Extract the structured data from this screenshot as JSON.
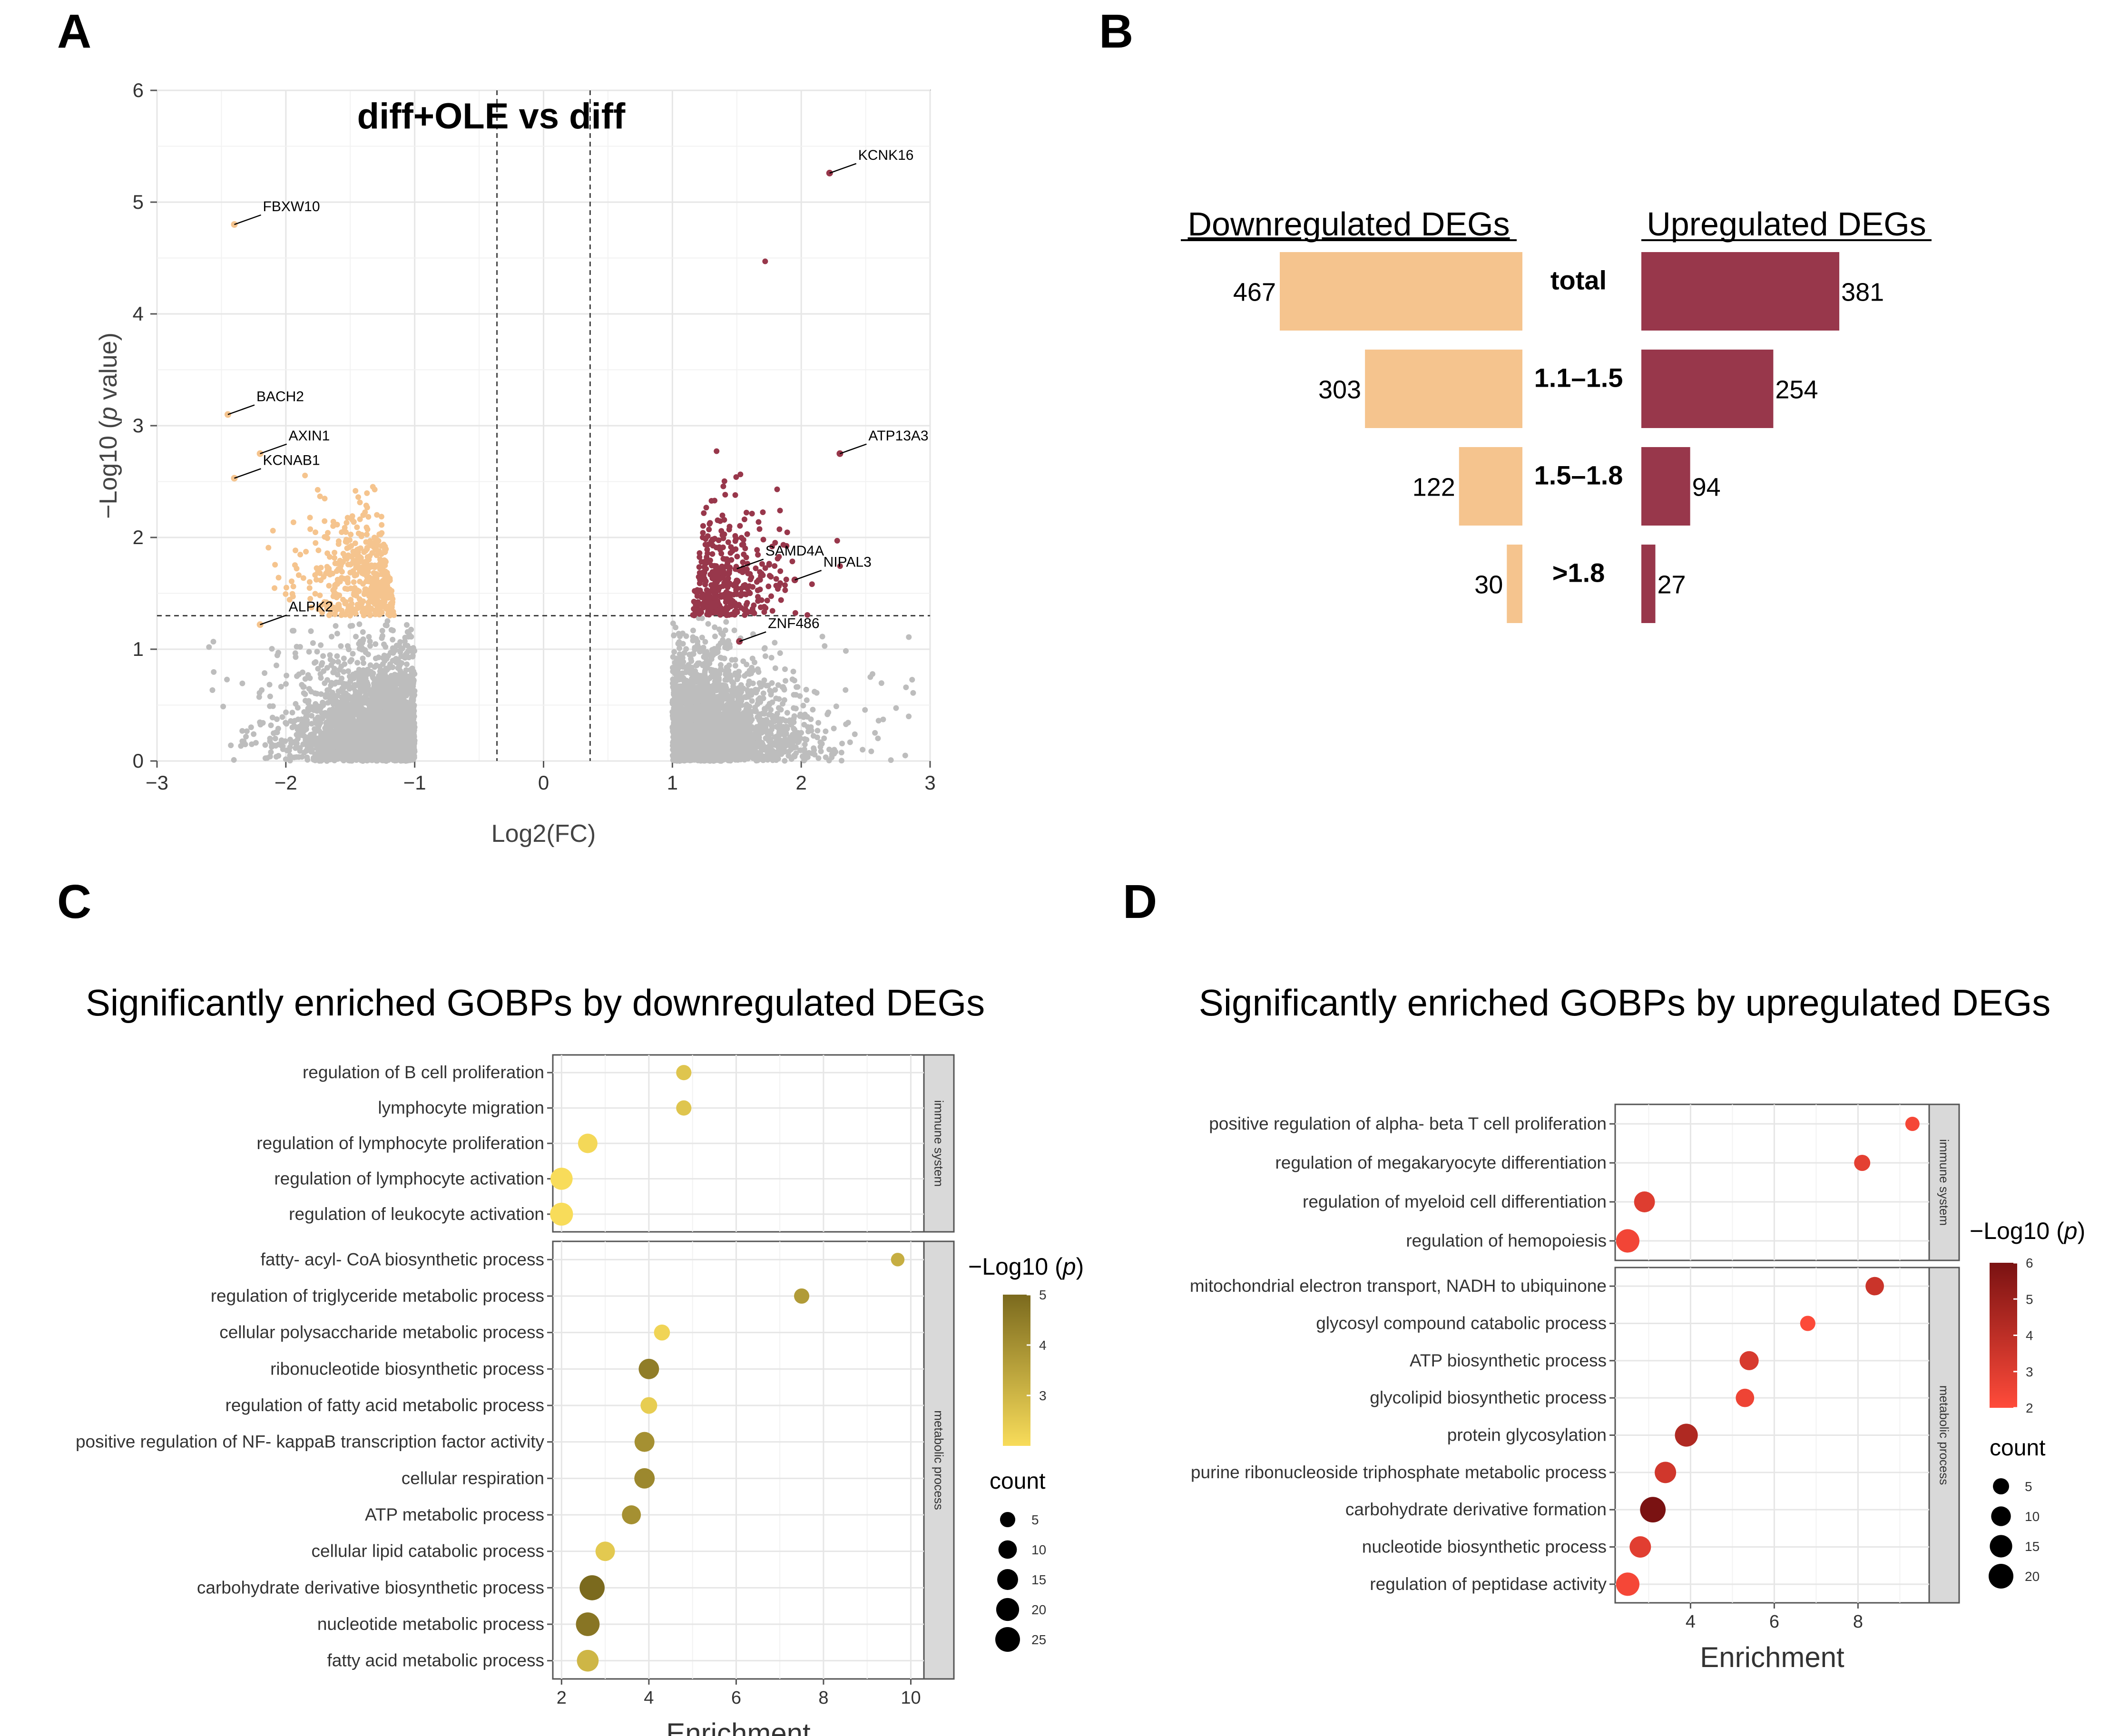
{
  "colors": {
    "down": "#F5C48E",
    "up": "#98374B",
    "ns": "#BDBDBD",
    "grid": "#E6E6E6",
    "strip": "#D9D9D9"
  },
  "panels": {
    "A": {
      "letter": "A",
      "chart_data": {
        "type": "scatter",
        "title": "diff+OLE vs diff",
        "xlabel": "Log2(FC)",
        "ylabel_prefix": "−Log10 (",
        "ylabel_italic": "p",
        "ylabel_suffix": " value)",
        "xlim": [
          -3,
          3
        ],
        "ylim": [
          0,
          6
        ],
        "xticks": [
          -3,
          -2,
          -1,
          0,
          1,
          2,
          3
        ],
        "xtick_labels": [
          "−3",
          "−2",
          "−1",
          "0",
          "1",
          "2",
          "3"
        ],
        "yticks": [
          0,
          1,
          2,
          3,
          4,
          5,
          6
        ],
        "fc_cutoffs": [
          -0.14,
          0.14
        ],
        "p_cutoff": 1.3,
        "labeled_genes": [
          {
            "gene": "KCNK16",
            "x": 2.22,
            "y": 5.26
          },
          {
            "gene": "FBXW10",
            "x": -2.4,
            "y": 4.8
          },
          {
            "gene": "BACH2",
            "x": -2.45,
            "y": 3.1
          },
          {
            "gene": "AXIN1",
            "x": -2.2,
            "y": 2.75
          },
          {
            "gene": "KCNAB1",
            "x": -2.4,
            "y": 2.53
          },
          {
            "gene": "ATP13A3",
            "x": 2.3,
            "y": 2.75
          },
          {
            "gene": "SAMD4A",
            "x": 1.5,
            "y": 1.72
          },
          {
            "gene": "NIPAL3",
            "x": 1.95,
            "y": 1.62
          },
          {
            "gene": "ALPK2",
            "x": -2.2,
            "y": 1.22
          },
          {
            "gene": "ZNF486",
            "x": 1.52,
            "y": 1.07
          }
        ]
      }
    },
    "B": {
      "letter": "B",
      "chart_data": {
        "type": "bar",
        "layout": "butterfly",
        "left_title": "Downregulated DEGs",
        "right_title": "Upregulated DEGs",
        "categories": [
          "total",
          "1.1–1.5",
          "1.5–1.8",
          ">1.8"
        ],
        "series": [
          {
            "name": "Downregulated DEGs",
            "values": [
              467,
              303,
              122,
              30
            ]
          },
          {
            "name": "Upregulated DEGs",
            "values": [
              381,
              254,
              94,
              27
            ]
          }
        ],
        "value_labels_down": [
          "467",
          "303",
          "122",
          "30"
        ],
        "value_labels_up": [
          "381",
          "254",
          "94",
          "27"
        ]
      }
    },
    "C": {
      "letter": "C",
      "chart_data": {
        "type": "scatter",
        "title": "Significantly enriched GOBPs by downregulated DEGs",
        "xlabel": "Enrichment",
        "xlim": [
          1.8,
          10.3
        ],
        "xticks": [
          2,
          4,
          6,
          8,
          10
        ],
        "facets": [
          {
            "name": "immune system",
            "terms": [
              {
                "term": "regulation of B cell proliferation",
                "enrichment": 4.8,
                "log10p": 2.6,
                "count": 5
              },
              {
                "term": "lymphocyte migration",
                "enrichment": 4.8,
                "log10p": 2.6,
                "count": 5
              },
              {
                "term": "regulation of lymphocyte proliferation",
                "enrichment": 2.6,
                "log10p": 2.1,
                "count": 12
              },
              {
                "term": "regulation of lymphocyte activation",
                "enrichment": 2.0,
                "log10p": 2.0,
                "count": 18
              },
              {
                "term": "regulation of leukocyte activation",
                "enrichment": 2.0,
                "log10p": 2.0,
                "count": 20
              }
            ]
          },
          {
            "name": "metabolic process",
            "terms": [
              {
                "term": "fatty- acyl- CoA biosynthetic process",
                "enrichment": 9.7,
                "log10p": 3.2,
                "count": 3
              },
              {
                "term": "regulation of triglyceride metabolic process",
                "enrichment": 7.5,
                "log10p": 3.7,
                "count": 5
              },
              {
                "term": "cellular polysaccharide metabolic process",
                "enrichment": 4.3,
                "log10p": 2.2,
                "count": 6
              },
              {
                "term": "ribonucleotide biosynthetic process",
                "enrichment": 4.0,
                "log10p": 4.5,
                "count": 14
              },
              {
                "term": "regulation of fatty acid metabolic process",
                "enrichment": 4.0,
                "log10p": 2.4,
                "count": 7
              },
              {
                "term": "positive regulation of NF- kappaB transcription factor activity",
                "enrichment": 3.9,
                "log10p": 4.0,
                "count": 13
              },
              {
                "term": "cellular respiration",
                "enrichment": 3.9,
                "log10p": 4.2,
                "count": 14
              },
              {
                "term": "ATP metabolic process",
                "enrichment": 3.6,
                "log10p": 4.0,
                "count": 11
              },
              {
                "term": "cellular lipid catabolic process",
                "enrichment": 3.0,
                "log10p": 2.5,
                "count": 12
              },
              {
                "term": "carbohydrate derivative biosynthetic process",
                "enrichment": 2.7,
                "log10p": 5.0,
                "count": 26
              },
              {
                "term": "nucleotide metabolic process",
                "enrichment": 2.6,
                "log10p": 4.7,
                "count": 22
              },
              {
                "term": "fatty acid metabolic process",
                "enrichment": 2.6,
                "log10p": 3.0,
                "count": 17
              }
            ]
          }
        ],
        "color_legend": {
          "title_prefix": "−Log10 (",
          "title_italic": "p",
          "title_suffix": ")",
          "min": 2,
          "max": 5,
          "ticks": [
            "5",
            "4",
            "3"
          ],
          "tick_values": [
            5,
            4,
            3
          ],
          "low": "#F8DC5A",
          "high": "#7B6A1E"
        },
        "size_legend": {
          "title": "count",
          "values": [
            5,
            10,
            15,
            20,
            25
          ],
          "labels": [
            "5",
            "10",
            "15",
            "20",
            "25"
          ]
        }
      }
    },
    "D": {
      "letter": "D",
      "chart_data": {
        "type": "scatter",
        "title": "Significantly enriched GOBPs by upregulated DEGs",
        "xlabel": "Enrichment",
        "xlim": [
          2.2,
          9.7
        ],
        "xticks": [
          4,
          6,
          8
        ],
        "facets": [
          {
            "name": "immune system",
            "terms": [
              {
                "term": "positive regulation of alpha- beta T cell proliferation",
                "enrichment": 9.3,
                "log10p": 2.3,
                "count": 3
              },
              {
                "term": "regulation of megakaryocyte differentiation",
                "enrichment": 8.1,
                "log10p": 2.8,
                "count": 5
              },
              {
                "term": "regulation of myeloid cell differentiation",
                "enrichment": 2.9,
                "log10p": 3.0,
                "count": 12
              },
              {
                "term": "regulation of hemopoiesis",
                "enrichment": 2.5,
                "log10p": 2.4,
                "count": 17
              }
            ]
          },
          {
            "name": "metabolic process",
            "terms": [
              {
                "term": "mitochondrial electron transport, NADH to ubiquinone",
                "enrichment": 8.4,
                "log10p": 3.6,
                "count": 8
              },
              {
                "term": "glycosyl compound catabolic process",
                "enrichment": 6.8,
                "log10p": 2.1,
                "count": 4
              },
              {
                "term": "ATP biosynthetic process",
                "enrichment": 5.4,
                "log10p": 3.2,
                "count": 9
              },
              {
                "term": "glycolipid biosynthetic process",
                "enrichment": 5.3,
                "log10p": 2.5,
                "count": 8
              },
              {
                "term": "protein glycosylation",
                "enrichment": 3.9,
                "log10p": 4.4,
                "count": 16
              },
              {
                "term": "purine ribonucleoside triphosphate metabolic process",
                "enrichment": 3.4,
                "log10p": 3.4,
                "count": 13
              },
              {
                "term": "carbohydrate derivative formation",
                "enrichment": 3.1,
                "log10p": 6.0,
                "count": 22
              },
              {
                "term": "nucleotide biosynthetic process",
                "enrichment": 2.8,
                "log10p": 2.9,
                "count": 13
              },
              {
                "term": "regulation of peptidase activity",
                "enrichment": 2.5,
                "log10p": 2.3,
                "count": 17
              }
            ]
          }
        ],
        "color_legend": {
          "title_prefix": "−Log10 (",
          "title_italic": "p",
          "title_suffix": ")",
          "min": 2,
          "max": 6,
          "ticks": [
            "6",
            "5",
            "4",
            "3",
            "2"
          ],
          "tick_values": [
            6,
            5,
            4,
            3,
            2
          ],
          "low": "#FF4B3A",
          "high": "#7A1212"
        },
        "size_legend": {
          "title": "count",
          "values": [
            5,
            10,
            15,
            20
          ],
          "labels": [
            "5",
            "10",
            "15",
            "20"
          ]
        }
      }
    }
  }
}
